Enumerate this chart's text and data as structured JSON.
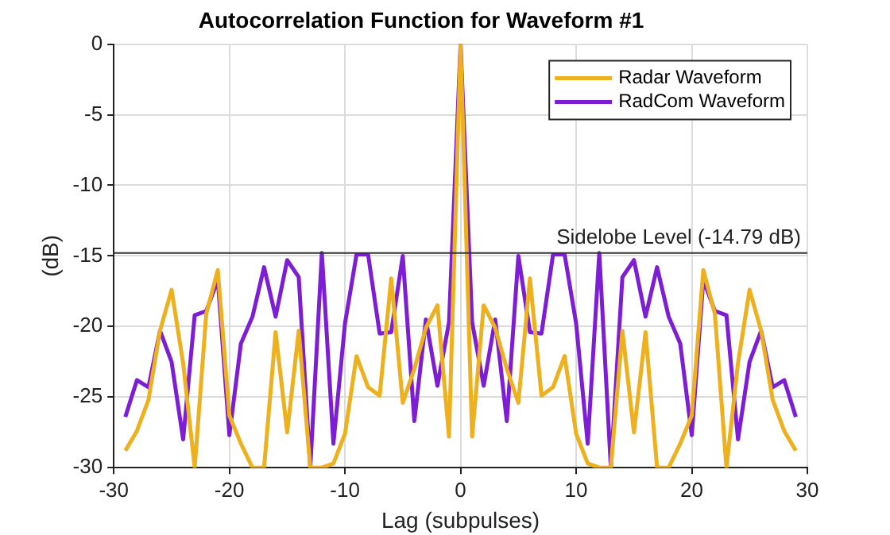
{
  "chart_data": {
    "type": "line",
    "title": "Autocorrelation Function for Waveform #1",
    "xlabel": "Lag (subpulses)",
    "ylabel": "(dB)",
    "x": [
      -29,
      -28,
      -27,
      -26,
      -25,
      -24,
      -23,
      -22,
      -21,
      -20,
      -19,
      -18,
      -17,
      -16,
      -15,
      -14,
      -13,
      -12,
      -11,
      -10,
      -9,
      -8,
      -7,
      -6,
      -5,
      -4,
      -3,
      -2,
      -1,
      0,
      1,
      2,
      3,
      4,
      5,
      6,
      7,
      8,
      9,
      10,
      11,
      12,
      13,
      14,
      15,
      16,
      17,
      18,
      19,
      20,
      21,
      22,
      23,
      24,
      25,
      26,
      27,
      28,
      29
    ],
    "series": [
      {
        "name": "Radar Waveform",
        "color": "#edb120",
        "values": [
          -28.8,
          -27.4,
          -25.2,
          -20.3,
          -17.4,
          -22.6,
          -30,
          -19.1,
          -16.0,
          -26.3,
          -28.3,
          -30,
          -30,
          -20.4,
          -27.5,
          -20.3,
          -30,
          -30,
          -29.7,
          -27.6,
          -22.1,
          -24.3,
          -24.9,
          -16.6,
          -25.4,
          -23.0,
          -20.1,
          -18.5,
          -27.8,
          0,
          -27.8,
          -18.5,
          -20.1,
          -23.0,
          -25.4,
          -16.6,
          -24.9,
          -24.3,
          -22.1,
          -27.6,
          -29.7,
          -30,
          -30,
          -20.3,
          -27.5,
          -20.4,
          -30,
          -30,
          -28.3,
          -26.3,
          -16.0,
          -19.1,
          -30,
          -22.6,
          -17.4,
          -20.3,
          -25.2,
          -27.4,
          -28.8
        ]
      },
      {
        "name": "RadCom Waveform",
        "color": "#7e1ed4",
        "values": [
          -26.4,
          -23.8,
          -24.3,
          -20.3,
          -22.5,
          -28.0,
          -19.2,
          -18.9,
          -16.7,
          -27.7,
          -21.2,
          -19.3,
          -15.8,
          -19.3,
          -15.3,
          -16.5,
          -30,
          -14.8,
          -28.3,
          -19.8,
          -14.9,
          -14.9,
          -20.5,
          -20.4,
          -15.0,
          -26.7,
          -19.5,
          -24.2,
          -19.7,
          0,
          -19.7,
          -24.2,
          -19.5,
          -26.7,
          -15.0,
          -20.4,
          -20.5,
          -14.9,
          -14.9,
          -19.8,
          -28.3,
          -14.8,
          -30,
          -16.5,
          -15.3,
          -19.3,
          -15.8,
          -19.3,
          -21.2,
          -27.7,
          -16.7,
          -18.9,
          -19.2,
          -28.0,
          -22.5,
          -20.3,
          -24.3,
          -23.8,
          -26.4
        ]
      }
    ],
    "xlim": [
      -30,
      30
    ],
    "xticks": [
      -30,
      -20,
      -10,
      0,
      10,
      20,
      30
    ],
    "ylim": [
      -30,
      0
    ],
    "yticks": [
      -30,
      -25,
      -20,
      -15,
      -10,
      -5,
      0
    ],
    "ref_lines": [
      {
        "axis": "y",
        "value": -14.79,
        "label": "Sidelobe Level (-14.79 dB)",
        "color": "#333333"
      }
    ],
    "grid": true,
    "legend": "top right",
    "marker": "none",
    "line_style": "solid"
  }
}
